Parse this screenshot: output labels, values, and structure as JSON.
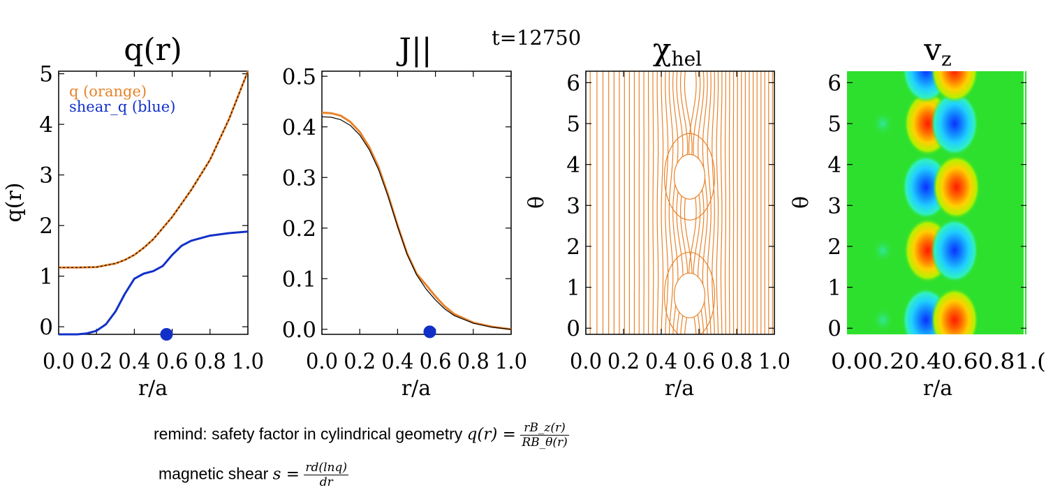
{
  "timestamp": "t=12750",
  "colors": {
    "orange": "#e8832a",
    "blue": "#1230c8",
    "black": "#000000",
    "green_bg": "#2ee02e"
  },
  "chart_data": [
    {
      "type": "line",
      "title": "q(r)",
      "xlabel": "r/a",
      "ylabel": "q(r)",
      "xlim": [
        0,
        1
      ],
      "ylim": [
        -0.15,
        5.05
      ],
      "x_ticks": [
        "0.0",
        "0.2",
        "0.4",
        "0.6",
        "0.8",
        "1.0"
      ],
      "y_ticks": [
        "0",
        "1",
        "2",
        "3",
        "4",
        "5"
      ],
      "legend": [
        "q (orange)",
        "shear_q (blue)"
      ],
      "series": [
        {
          "name": "q (orange)",
          "color": "orange",
          "x": [
            0,
            0.1,
            0.2,
            0.3,
            0.35,
            0.4,
            0.45,
            0.5,
            0.55,
            0.6,
            0.7,
            0.8,
            0.9,
            1.0
          ],
          "y": [
            1.17,
            1.17,
            1.18,
            1.25,
            1.32,
            1.42,
            1.56,
            1.73,
            1.95,
            2.17,
            2.7,
            3.3,
            4.1,
            5.05
          ]
        },
        {
          "name": "",
          "color": "black",
          "style": "dashed",
          "x": [
            0,
            0.1,
            0.2,
            0.3,
            0.35,
            0.4,
            0.45,
            0.5,
            0.55,
            0.6,
            0.7,
            0.8,
            0.9,
            1.0
          ],
          "y": [
            1.17,
            1.17,
            1.18,
            1.25,
            1.32,
            1.42,
            1.56,
            1.73,
            1.95,
            2.17,
            2.7,
            3.3,
            4.1,
            5.05
          ]
        },
        {
          "name": "shear_q (blue)",
          "color": "blue",
          "x": [
            0,
            0.1,
            0.15,
            0.2,
            0.25,
            0.3,
            0.35,
            0.4,
            0.45,
            0.5,
            0.55,
            0.6,
            0.65,
            0.7,
            0.8,
            0.9,
            1.0
          ],
          "y": [
            -0.15,
            -0.15,
            -0.13,
            -0.08,
            0.05,
            0.3,
            0.65,
            0.95,
            1.05,
            1.1,
            1.2,
            1.42,
            1.6,
            1.7,
            1.8,
            1.85,
            1.88
          ]
        }
      ],
      "marker": {
        "x": 0.57,
        "y": -0.15,
        "color": "blue"
      }
    },
    {
      "type": "line",
      "title": "J||",
      "xlabel": "r/a",
      "ylabel": "",
      "xlim": [
        0,
        1
      ],
      "ylim": [
        -0.01,
        0.51
      ],
      "x_ticks": [
        "0.0",
        "0.2",
        "0.4",
        "0.6",
        "0.8",
        "1.0"
      ],
      "y_ticks": [
        "0.0",
        "0.1",
        "0.2",
        "0.3",
        "0.4",
        "0.5"
      ],
      "series": [
        {
          "name": "",
          "color": "orange",
          "x": [
            0,
            0.05,
            0.1,
            0.15,
            0.2,
            0.25,
            0.3,
            0.35,
            0.4,
            0.45,
            0.5,
            0.55,
            0.6,
            0.65,
            0.7,
            0.8,
            0.9,
            1.0
          ],
          "y": [
            0.428,
            0.427,
            0.422,
            0.41,
            0.39,
            0.36,
            0.32,
            0.265,
            0.205,
            0.15,
            0.11,
            0.088,
            0.065,
            0.045,
            0.03,
            0.013,
            0.005,
            0.0
          ]
        },
        {
          "name": "",
          "color": "black",
          "x": [
            0,
            0.05,
            0.1,
            0.15,
            0.2,
            0.25,
            0.3,
            0.35,
            0.4,
            0.45,
            0.5,
            0.55,
            0.6,
            0.65,
            0.7,
            0.8,
            0.9,
            1.0
          ],
          "y": [
            0.42,
            0.419,
            0.414,
            0.403,
            0.384,
            0.355,
            0.315,
            0.262,
            0.203,
            0.148,
            0.108,
            0.08,
            0.058,
            0.04,
            0.027,
            0.012,
            0.004,
            0.0
          ]
        }
      ],
      "marker": {
        "x": 0.57,
        "y": -0.005,
        "color": "blue"
      }
    },
    {
      "type": "contour",
      "title": "χhel",
      "title_main": "χ",
      "title_sub": "hel",
      "xlabel": "r/a",
      "ylabel": "θ",
      "xlim": [
        0,
        1
      ],
      "ylim": [
        -0.15,
        6.28
      ],
      "x_ticks": [
        "0.0",
        "0.2",
        "0.4",
        "0.6",
        "0.8",
        "1.0"
      ],
      "y_ticks": [
        "0",
        "1",
        "2",
        "3",
        "4",
        "5",
        "6"
      ],
      "line_color": "orange",
      "islands": [
        {
          "x": 0.55,
          "y": 0.8
        },
        {
          "x": 0.55,
          "y": 3.7
        }
      ]
    },
    {
      "type": "heatmap",
      "title": "vz",
      "title_main": "v",
      "title_sub": "z",
      "xlabel": "r/a",
      "ylabel": "θ",
      "xlim": [
        0,
        1
      ],
      "ylim": [
        -0.15,
        6.28
      ],
      "x_ticks": [
        "0.0",
        "0.2",
        "0.4",
        "0.6",
        "0.8",
        "1.0"
      ],
      "x_tick_text": "0.00.20.40.60.81.(",
      "y_ticks": [
        "0",
        "1",
        "2",
        "3",
        "4",
        "5",
        "6"
      ],
      "cells": [
        {
          "x": 0.44,
          "y": 0.2,
          "sign": -1
        },
        {
          "x": 0.6,
          "y": 0.2,
          "sign": 1
        },
        {
          "x": 0.45,
          "y": 1.9,
          "sign": 1
        },
        {
          "x": 0.6,
          "y": 1.9,
          "sign": -1
        },
        {
          "x": 0.44,
          "y": 3.45,
          "sign": -1
        },
        {
          "x": 0.61,
          "y": 3.45,
          "sign": 1
        },
        {
          "x": 0.45,
          "y": 5.0,
          "sign": 1
        },
        {
          "x": 0.6,
          "y": 5.0,
          "sign": -1
        },
        {
          "x": 0.44,
          "y": 6.3,
          "sign": -1
        },
        {
          "x": 0.6,
          "y": 6.3,
          "sign": 1
        }
      ],
      "weak_blobs": [
        {
          "x": 0.2,
          "y": 0.2
        },
        {
          "x": 0.2,
          "y": 1.9
        },
        {
          "x": 0.2,
          "y": 5.0
        }
      ]
    }
  ],
  "notes": {
    "safety_factor_prefix": "remind: safety factor in cylindrical geometry",
    "q_lhs": "q(r) =",
    "q_num": "rB_z(r)",
    "q_den": "RB_θ(r)",
    "shear_prefix": "magnetic shear",
    "s_lhs": "s =",
    "s_num": "rd(lnq)",
    "s_den": "dr"
  }
}
